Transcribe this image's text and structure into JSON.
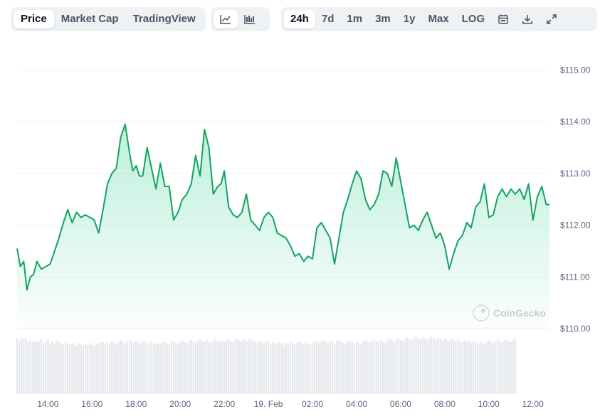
{
  "toolbar": {
    "view_tabs": [
      "Price",
      "Market Cap",
      "TradingView"
    ],
    "active_view": "Price",
    "chart_types": [
      "line-chart-icon",
      "candlestick-icon"
    ],
    "ranges": [
      "24h",
      "7d",
      "1m",
      "3m",
      "1y",
      "Max",
      "LOG"
    ],
    "active_range": "24h",
    "tools": [
      "calendar-icon",
      "download-icon",
      "expand-icon"
    ]
  },
  "watermark": "CoinGecko",
  "colors": {
    "line": "#16c784",
    "line_dark": "#13a35f",
    "volume": "#e4e7ec",
    "grid": "#eff2f5"
  },
  "chart_data": {
    "type": "area",
    "title": "",
    "xlabel": "",
    "ylabel": "",
    "x_unit": "hour of day",
    "y_unit": "USD",
    "ylim": [
      110,
      115.5
    ],
    "xlim": [
      12.6,
      36.75
    ],
    "y_ticks": [
      "$110.00",
      "$111.00",
      "$112.00",
      "$113.00",
      "$114.00",
      "$115.00"
    ],
    "y_tick_values": [
      110,
      111,
      112,
      113,
      114,
      115
    ],
    "x_ticks": [
      "14:00",
      "16:00",
      "18:00",
      "20:00",
      "22:00",
      "19. Feb",
      "02:00",
      "04:00",
      "06:00",
      "08:00",
      "10:00",
      "12:00"
    ],
    "x_tick_values": [
      14,
      16,
      18,
      20,
      22,
      24,
      26,
      28,
      30,
      32,
      34,
      36
    ],
    "grid": true,
    "legend": "none",
    "series": [
      {
        "x": [
          12.6,
          12.75,
          12.9,
          13.05,
          13.2,
          13.35,
          13.5,
          13.7,
          13.9,
          14.1,
          14.3,
          14.5,
          14.7,
          14.9,
          15.1,
          15.3,
          15.5,
          15.7,
          15.9,
          16.1,
          16.3,
          16.5,
          16.7,
          16.9,
          17.1,
          17.3,
          17.5,
          17.7,
          17.85,
          18.0,
          18.15,
          18.3,
          18.5,
          18.7,
          18.9,
          19.1,
          19.3,
          19.5,
          19.7,
          19.9,
          20.1,
          20.3,
          20.5,
          20.7,
          20.9,
          21.1,
          21.3,
          21.5,
          21.7,
          21.85,
          22.0,
          22.2,
          22.4,
          22.6,
          22.8,
          23.0,
          23.2,
          23.4,
          23.6,
          23.8,
          24.0,
          24.2,
          24.4,
          24.6,
          24.8,
          25.0,
          25.2,
          25.4,
          25.6,
          25.8,
          26.0,
          26.2,
          26.4,
          26.6,
          26.8,
          27.0,
          27.2,
          27.4,
          27.6,
          27.8,
          28.0,
          28.2,
          28.4,
          28.6,
          28.8,
          29.0,
          29.2,
          29.4,
          29.6,
          29.8,
          30.0,
          30.2,
          30.4,
          30.6,
          30.8,
          31.0,
          31.2,
          31.4,
          31.6,
          31.8,
          32.0,
          32.2,
          32.4,
          32.6,
          32.8,
          33.0,
          33.2,
          33.4,
          33.6,
          33.8,
          34.0,
          34.2,
          34.4,
          34.6,
          34.8,
          35.0,
          35.2,
          35.4,
          35.6,
          35.8,
          36.0,
          36.2,
          36.4,
          36.6,
          36.75
        ],
        "y": [
          111.55,
          111.2,
          111.3,
          110.75,
          111.0,
          111.05,
          111.3,
          111.15,
          111.2,
          111.25,
          111.5,
          111.75,
          112.05,
          112.3,
          112.05,
          112.25,
          112.15,
          112.2,
          112.15,
          112.1,
          111.85,
          112.3,
          112.8,
          113.0,
          113.1,
          113.7,
          113.95,
          113.4,
          113.05,
          113.15,
          112.95,
          112.95,
          113.5,
          113.1,
          112.7,
          113.2,
          112.75,
          112.75,
          112.1,
          112.25,
          112.5,
          112.6,
          112.8,
          113.35,
          112.95,
          113.85,
          113.5,
          112.6,
          112.75,
          112.8,
          113.05,
          112.35,
          112.2,
          112.15,
          112.25,
          112.6,
          112.1,
          112.0,
          111.9,
          112.15,
          112.25,
          112.15,
          111.85,
          111.8,
          111.75,
          111.6,
          111.4,
          111.45,
          111.3,
          111.4,
          111.35,
          111.95,
          112.05,
          111.9,
          111.75,
          111.25,
          111.75,
          112.25,
          112.5,
          112.8,
          113.05,
          112.9,
          112.5,
          112.3,
          112.4,
          112.6,
          113.05,
          113.0,
          112.75,
          113.3,
          112.85,
          112.4,
          111.95,
          112.0,
          111.9,
          112.1,
          112.25,
          112.0,
          111.75,
          111.85,
          111.6,
          111.15,
          111.45,
          111.7,
          111.8,
          112.05,
          111.95,
          112.35,
          112.45,
          112.8,
          112.15,
          112.2,
          112.55,
          112.7,
          112.55,
          112.7,
          112.6,
          112.7,
          112.5,
          112.8,
          112.1,
          112.55,
          112.75,
          112.4,
          112.4
        ]
      }
    ],
    "volume_x": [
      12.6,
      12.7,
      12.8,
      12.9,
      13.0,
      13.1,
      13.2,
      13.3,
      13.4,
      13.5,
      13.6,
      13.7,
      13.8,
      13.9,
      14.0,
      14.1,
      14.2,
      14.3,
      14.4,
      14.5,
      14.6,
      14.7,
      14.8,
      14.9,
      15.0,
      15.1,
      15.2,
      15.3,
      15.4,
      15.5,
      15.6,
      15.7,
      15.8,
      15.9,
      16.0,
      16.1,
      16.2,
      16.3,
      16.4,
      16.5,
      16.6,
      16.7,
      16.8,
      16.9,
      17.0,
      17.1,
      17.2,
      17.3,
      17.4,
      17.5,
      17.6,
      17.7,
      17.8,
      17.9,
      18.0,
      18.1,
      18.2,
      18.3,
      18.4,
      18.5,
      18.6,
      18.7,
      18.8,
      18.9,
      19.0,
      19.1,
      19.2,
      19.3,
      19.4,
      19.5,
      19.6,
      19.7,
      19.8,
      19.9,
      20.0,
      20.1,
      20.2,
      20.3,
      20.4,
      20.5,
      20.6,
      20.7,
      20.8,
      20.9,
      21.0,
      21.1,
      21.2,
      21.3,
      21.4,
      21.5,
      21.6,
      21.7,
      21.8,
      21.9,
      22.0,
      22.1,
      22.2,
      22.3,
      22.4,
      22.5,
      22.6,
      22.7,
      22.8,
      22.9,
      23.0,
      23.1,
      23.2,
      23.3,
      23.4,
      23.5,
      23.6,
      23.7,
      23.8,
      23.9,
      24.0,
      24.1,
      24.2,
      24.3,
      24.4,
      24.5,
      24.6,
      24.7,
      24.8,
      24.9,
      25.0,
      25.1,
      25.2,
      25.3,
      25.4,
      25.5,
      25.6,
      25.7,
      25.8,
      25.9,
      26.0,
      26.1,
      26.2,
      26.3,
      26.4,
      26.5,
      26.6,
      26.7,
      26.8,
      26.9,
      27.0,
      27.1,
      27.2,
      27.3,
      27.4,
      27.5,
      27.6,
      27.7,
      27.8,
      27.9,
      28.0,
      28.1,
      28.2,
      28.3,
      28.4,
      28.5,
      28.6,
      28.7,
      28.8,
      28.9,
      29.0,
      29.1,
      29.2,
      29.3,
      29.4,
      29.5,
      29.6,
      29.7,
      29.8,
      29.9,
      30.0,
      30.1,
      30.2,
      30.3,
      30.4,
      30.5,
      30.6,
      30.7,
      30.8,
      30.9,
      31.0,
      31.1,
      31.2,
      31.3,
      31.4,
      31.5,
      31.6,
      31.7,
      31.8,
      31.9,
      32.0,
      32.1,
      32.2,
      32.3,
      32.4,
      32.5,
      32.6,
      32.7,
      32.8,
      32.9,
      33.0,
      33.1,
      33.2,
      33.3,
      33.4,
      33.5,
      33.6,
      33.7,
      33.8,
      33.9,
      34.0,
      34.1,
      34.2,
      34.3,
      34.4,
      34.5,
      34.6,
      34.7,
      34.8,
      34.9,
      35.0,
      35.1,
      35.2,
      35.3,
      35.4,
      35.5,
      35.6,
      35.7,
      35.8,
      35.9,
      36.0,
      36.1,
      36.2,
      36.3,
      36.4,
      36.5,
      36.6,
      36.7
    ],
    "volume_rel": [
      0.95,
      0.92,
      0.97,
      0.94,
      0.96,
      0.9,
      0.93,
      0.91,
      0.89,
      0.92,
      0.9,
      0.94,
      0.88,
      0.91,
      0.93,
      0.87,
      0.9,
      0.86,
      0.92,
      0.89,
      0.88,
      0.85,
      0.9,
      0.87,
      0.84,
      0.88,
      0.86,
      0.83,
      0.87,
      0.85,
      0.82,
      0.86,
      0.84,
      0.88,
      0.85,
      0.83,
      0.87,
      0.86,
      0.9,
      0.88,
      0.85,
      0.89,
      0.87,
      0.91,
      0.88,
      0.86,
      0.9,
      0.92,
      0.89,
      0.87,
      0.91,
      0.93,
      0.9,
      0.88,
      0.92,
      0.89,
      0.87,
      0.91,
      0.9,
      0.88,
      0.86,
      0.9,
      0.87,
      0.85,
      0.89,
      0.86,
      0.88,
      0.9,
      0.87,
      0.85,
      0.89,
      0.91,
      0.88,
      0.86,
      0.9,
      0.92,
      0.89,
      0.87,
      0.91,
      0.93,
      0.9,
      0.88,
      0.92,
      0.94,
      0.91,
      0.89,
      0.93,
      0.9,
      0.88,
      0.92,
      0.95,
      0.91,
      0.89,
      0.93,
      0.9,
      0.92,
      0.94,
      0.91,
      0.89,
      0.93,
      0.95,
      0.92,
      0.9,
      0.94,
      0.91,
      0.93,
      0.95,
      0.92,
      0.9,
      0.88,
      0.92,
      0.9,
      0.87,
      0.91,
      0.89,
      0.86,
      0.9,
      0.88,
      0.85,
      0.89,
      0.87,
      0.84,
      0.88,
      0.86,
      0.9,
      0.87,
      0.85,
      0.89,
      0.91,
      0.88,
      0.86,
      0.9,
      0.87,
      0.85,
      0.89,
      0.92,
      0.9,
      0.88,
      0.91,
      0.93,
      0.9,
      0.88,
      0.92,
      0.89,
      0.87,
      0.91,
      0.93,
      0.9,
      0.88,
      0.86,
      0.9,
      0.92,
      0.89,
      0.87,
      0.91,
      0.88,
      0.86,
      0.9,
      0.93,
      0.91,
      0.89,
      0.92,
      0.94,
      0.91,
      0.89,
      0.93,
      0.9,
      0.88,
      0.92,
      0.95,
      0.93,
      0.9,
      0.94,
      0.96,
      0.93,
      0.91,
      0.95,
      0.98,
      0.95,
      0.92,
      0.96,
      0.99,
      0.96,
      0.93,
      0.97,
      0.94,
      0.92,
      0.96,
      0.99,
      0.96,
      0.93,
      0.97,
      0.95,
      0.92,
      0.96,
      0.93,
      0.91,
      0.95,
      0.92,
      0.9,
      0.94,
      0.91,
      0.89,
      0.93,
      0.9,
      0.92,
      0.88,
      0.91,
      0.89,
      0.87,
      0.9,
      0.88,
      0.86,
      0.9,
      0.92,
      0.89,
      0.87,
      0.91,
      0.93,
      0.9,
      0.88,
      0.92,
      0.94,
      0.91,
      0.89,
      0.93,
      0.95
    ]
  }
}
